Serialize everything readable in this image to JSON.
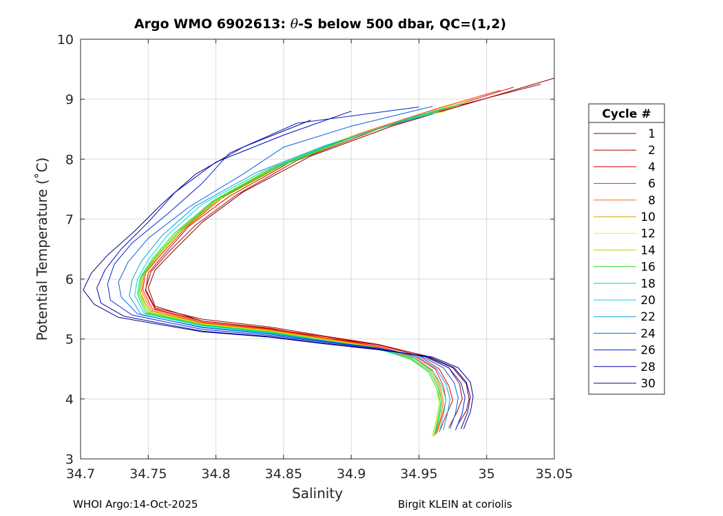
{
  "title_parts": {
    "prefix": "Argo WMO 6902613: ",
    "symbol": "θ",
    "suffix": "-S below 500 dbar,  QC=(1,2)"
  },
  "footer": {
    "left": "WHOI Argo:14-Oct-2025",
    "right": "Birgit KLEIN at coriolis"
  },
  "chart_data": {
    "type": "line",
    "title": "Argo WMO 6902613: θ-S below 500 dbar,  QC=(1,2)",
    "xlabel": "Salinity",
    "ylabel": "Potential Temperature (˚C)",
    "xlim": [
      34.7,
      35.05
    ],
    "ylim": [
      3,
      10
    ],
    "xticks": [
      34.7,
      34.75,
      34.8,
      34.85,
      34.9,
      34.95,
      35,
      35.05
    ],
    "xtick_labels": [
      "34.7",
      "34.75",
      "34.8",
      "34.85",
      "34.9",
      "34.95",
      "35",
      "35.05"
    ],
    "yticks": [
      3,
      4,
      5,
      6,
      7,
      8,
      9,
      10
    ],
    "ytick_labels": [
      "3",
      "4",
      "5",
      "6",
      "7",
      "8",
      "9",
      "10"
    ],
    "grid": true,
    "legend_title": "Cycle #",
    "legend_position": "right-outside",
    "series": [
      {
        "name": "1",
        "color": "#7f0000",
        "x": [
          35.05,
          34.99,
          34.93,
          34.87,
          34.82,
          34.79,
          34.77,
          34.755,
          34.75,
          34.755,
          34.79,
          34.84,
          34.88,
          34.92,
          34.955,
          34.975,
          34.985,
          34.987,
          34.985,
          34.978
        ],
        "y": [
          9.35,
          8.95,
          8.55,
          8.05,
          7.45,
          6.95,
          6.5,
          6.15,
          5.85,
          5.55,
          5.3,
          5.18,
          5.02,
          4.9,
          4.72,
          4.52,
          4.25,
          4.0,
          3.8,
          3.55
        ]
      },
      {
        "name": "2",
        "color": "#a00000",
        "x": [
          35.04,
          34.98,
          34.92,
          34.86,
          34.815,
          34.785,
          34.765,
          34.752,
          34.748,
          34.755,
          34.79,
          34.84,
          34.88,
          34.92,
          34.952,
          34.972,
          34.98,
          34.982,
          34.978,
          34.972
        ],
        "y": [
          9.25,
          8.9,
          8.5,
          7.98,
          7.4,
          6.9,
          6.45,
          6.12,
          5.83,
          5.52,
          5.33,
          5.2,
          5.05,
          4.91,
          4.73,
          4.52,
          4.25,
          4.0,
          3.78,
          3.52
        ]
      },
      {
        "name": "4",
        "color": "#d40000",
        "x": [
          35.02,
          34.97,
          34.91,
          34.855,
          34.81,
          34.78,
          34.762,
          34.75,
          34.748,
          34.755,
          34.79,
          34.84,
          34.88,
          34.92,
          34.95,
          34.965,
          34.972,
          34.975,
          34.97,
          34.965
        ],
        "y": [
          9.2,
          8.85,
          8.45,
          7.95,
          7.38,
          6.88,
          6.42,
          6.1,
          5.8,
          5.5,
          5.3,
          5.17,
          5.04,
          4.9,
          4.72,
          4.5,
          4.22,
          3.98,
          3.72,
          3.45
        ]
      },
      {
        "name": "6",
        "color": "#ff1a00",
        "x": [
          35.01,
          34.96,
          34.905,
          34.85,
          34.805,
          34.778,
          34.76,
          34.748,
          34.746,
          34.753,
          34.79,
          34.84,
          34.88,
          34.92,
          34.948,
          34.962,
          34.968,
          34.97,
          34.967,
          34.963
        ],
        "y": [
          9.15,
          8.82,
          8.42,
          7.92,
          7.36,
          6.86,
          6.42,
          6.1,
          5.82,
          5.5,
          5.28,
          5.16,
          5.02,
          4.88,
          4.7,
          4.5,
          4.22,
          3.98,
          3.7,
          3.42
        ]
      },
      {
        "name": "8",
        "color": "#ff6a00",
        "x": [
          34.995,
          34.955,
          34.9,
          34.848,
          34.803,
          34.776,
          34.758,
          34.747,
          34.745,
          34.752,
          34.79,
          34.84,
          34.88,
          34.92,
          34.947,
          34.96,
          34.966,
          34.968,
          34.966,
          34.962
        ],
        "y": [
          9.05,
          8.78,
          8.38,
          7.9,
          7.35,
          6.85,
          6.4,
          6.08,
          5.8,
          5.48,
          5.27,
          5.15,
          5.01,
          4.87,
          4.69,
          4.48,
          4.2,
          3.95,
          3.68,
          3.4
        ]
      },
      {
        "name": "10",
        "color": "#c8a000",
        "x": [
          34.98,
          34.95,
          34.895,
          34.845,
          34.8,
          34.774,
          34.756,
          34.746,
          34.744,
          34.751,
          34.79,
          34.84,
          34.88,
          34.92,
          34.946,
          34.959,
          34.965,
          34.967,
          34.965,
          34.962
        ],
        "y": [
          8.9,
          8.72,
          8.34,
          7.88,
          7.33,
          6.83,
          6.38,
          6.06,
          5.78,
          5.47,
          5.26,
          5.14,
          5.0,
          4.86,
          4.68,
          4.47,
          4.2,
          3.95,
          3.68,
          3.4
        ]
      },
      {
        "name": "12",
        "color": "#f0f000",
        "x": [
          34.97,
          34.94,
          34.89,
          34.84,
          34.798,
          34.772,
          34.755,
          34.745,
          34.743,
          34.75,
          34.79,
          34.84,
          34.88,
          34.92,
          34.945,
          34.958,
          34.964,
          34.966,
          34.964,
          34.961
        ],
        "y": [
          8.8,
          8.66,
          8.3,
          7.85,
          7.31,
          6.81,
          6.37,
          6.05,
          5.77,
          5.46,
          5.25,
          5.13,
          4.99,
          4.85,
          4.67,
          4.46,
          4.19,
          3.94,
          3.66,
          3.38
        ]
      },
      {
        "name": "14",
        "color": "#a0e000",
        "x": [
          34.985,
          34.95,
          34.9,
          34.848,
          34.803,
          34.775,
          34.757,
          34.746,
          34.744,
          34.75,
          34.79,
          34.84,
          34.88,
          34.92,
          34.944,
          34.957,
          34.963,
          34.965,
          34.963,
          34.96
        ],
        "y": [
          8.95,
          8.72,
          8.35,
          7.88,
          7.33,
          6.82,
          6.38,
          6.05,
          5.77,
          5.45,
          5.24,
          5.12,
          4.98,
          4.84,
          4.66,
          4.45,
          4.18,
          3.94,
          3.66,
          3.38
        ]
      },
      {
        "name": "16",
        "color": "#30e030",
        "x": [
          34.98,
          34.945,
          34.895,
          34.845,
          34.8,
          34.773,
          34.755,
          34.745,
          34.743,
          34.749,
          34.79,
          34.84,
          34.88,
          34.92,
          34.944,
          34.957,
          34.963,
          34.966,
          34.964,
          34.961
        ],
        "y": [
          8.92,
          8.7,
          8.32,
          7.86,
          7.32,
          6.8,
          6.36,
          6.04,
          5.76,
          5.44,
          5.24,
          5.12,
          4.98,
          4.84,
          4.66,
          4.45,
          4.18,
          3.94,
          3.66,
          3.38
        ]
      },
      {
        "name": "18",
        "color": "#00e070",
        "x": [
          34.97,
          34.94,
          34.89,
          34.84,
          34.797,
          34.77,
          34.753,
          34.744,
          34.742,
          34.748,
          34.79,
          34.84,
          34.88,
          34.92,
          34.945,
          34.958,
          34.964,
          34.967,
          34.965,
          34.962
        ],
        "y": [
          8.85,
          8.66,
          8.28,
          7.83,
          7.29,
          6.78,
          6.34,
          6.02,
          5.75,
          5.43,
          5.23,
          5.11,
          4.97,
          4.83,
          4.66,
          4.46,
          4.2,
          3.96,
          3.7,
          3.42
        ]
      },
      {
        "name": "20",
        "color": "#00d8d8",
        "x": [
          34.965,
          34.935,
          34.885,
          34.835,
          34.79,
          34.765,
          34.75,
          34.742,
          34.74,
          34.747,
          34.79,
          34.84,
          34.88,
          34.92,
          34.947,
          34.96,
          34.967,
          34.97,
          34.968,
          34.965
        ],
        "y": [
          8.8,
          8.62,
          8.25,
          7.8,
          7.25,
          6.75,
          6.32,
          6.0,
          5.73,
          5.42,
          5.22,
          5.1,
          4.97,
          4.84,
          4.67,
          4.47,
          4.22,
          3.98,
          3.72,
          3.45
        ]
      },
      {
        "name": "22",
        "color": "#00a0e0",
        "x": [
          34.96,
          34.93,
          34.88,
          34.83,
          34.785,
          34.76,
          34.745,
          34.738,
          34.736,
          34.745,
          34.79,
          34.84,
          34.88,
          34.92,
          34.95,
          34.963,
          34.97,
          34.973,
          34.971,
          34.968
        ],
        "y": [
          8.75,
          8.58,
          8.22,
          7.78,
          7.22,
          6.72,
          6.3,
          5.98,
          5.72,
          5.4,
          5.2,
          5.09,
          4.97,
          4.85,
          4.69,
          4.5,
          4.25,
          4.0,
          3.75,
          3.48
        ]
      },
      {
        "name": "24",
        "color": "#0060e0",
        "x": [
          34.96,
          34.9,
          34.85,
          34.82,
          34.78,
          34.75,
          34.735,
          34.728,
          34.73,
          34.742,
          34.79,
          34.84,
          34.88,
          34.92,
          34.953,
          34.968,
          34.976,
          34.979,
          34.977,
          34.973
        ],
        "y": [
          8.88,
          8.55,
          8.2,
          7.75,
          7.2,
          6.68,
          6.28,
          5.95,
          5.7,
          5.42,
          5.19,
          5.08,
          4.96,
          4.85,
          4.7,
          4.52,
          4.27,
          4.02,
          3.76,
          3.5
        ]
      },
      {
        "name": "26",
        "color": "#0020d0",
        "x": [
          34.95,
          34.86,
          34.81,
          34.79,
          34.765,
          34.738,
          34.725,
          34.72,
          34.722,
          34.738,
          34.79,
          34.84,
          34.88,
          34.92,
          34.956,
          34.972,
          34.981,
          34.984,
          34.982,
          34.977
        ],
        "y": [
          8.87,
          8.6,
          8.1,
          7.6,
          7.1,
          6.6,
          6.25,
          5.92,
          5.65,
          5.4,
          5.16,
          5.06,
          4.95,
          4.84,
          4.7,
          4.52,
          4.27,
          4.03,
          3.76,
          3.48
        ]
      },
      {
        "name": "28",
        "color": "#0000b0",
        "x": [
          34.9,
          34.85,
          34.8,
          34.77,
          34.75,
          34.73,
          34.718,
          34.712,
          34.715,
          34.732,
          34.79,
          34.84,
          34.88,
          34.92,
          34.958,
          34.976,
          34.985,
          34.988,
          34.986,
          34.981
        ],
        "y": [
          8.8,
          8.4,
          7.95,
          7.45,
          6.95,
          6.5,
          6.15,
          5.85,
          5.6,
          5.38,
          5.13,
          5.04,
          4.93,
          4.83,
          4.7,
          4.52,
          4.28,
          4.04,
          3.78,
          3.5
        ]
      },
      {
        "name": "30",
        "color": "#000080",
        "x": [
          34.87,
          34.82,
          34.785,
          34.76,
          34.74,
          34.72,
          34.708,
          34.702,
          34.71,
          34.728,
          34.79,
          34.84,
          34.88,
          34.92,
          34.96,
          34.979,
          34.988,
          34.99,
          34.988,
          34.983
        ],
        "y": [
          8.65,
          8.2,
          7.75,
          7.25,
          6.8,
          6.4,
          6.1,
          5.82,
          5.58,
          5.36,
          5.12,
          5.03,
          4.92,
          4.82,
          4.7,
          4.52,
          4.28,
          4.04,
          3.78,
          3.5
        ]
      }
    ]
  }
}
